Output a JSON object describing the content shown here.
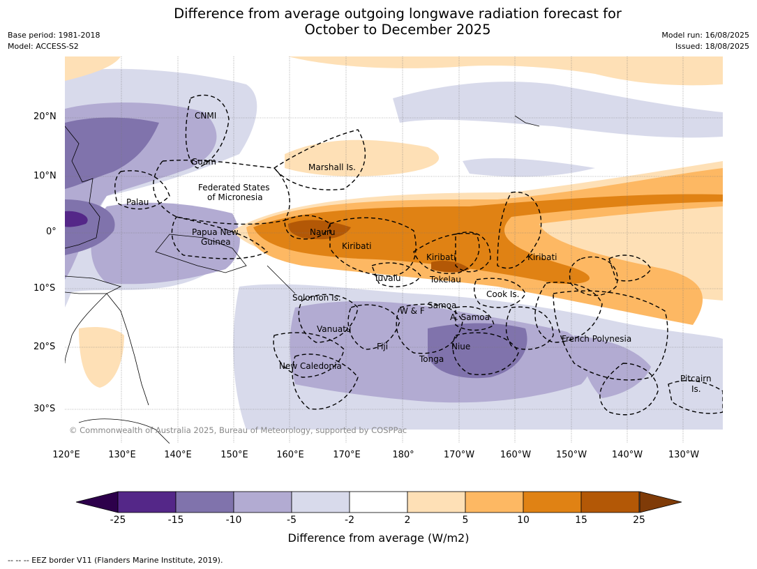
{
  "title_line1": "Difference from average outgoing longwave radiation forecast for",
  "title_line2": "October to December 2025",
  "base_period": "Base period: 1981-2018",
  "model": "Model: ACCESS-S2",
  "model_run": "Model run: 16/08/2025",
  "issued": "Issued: 18/08/2025",
  "copyright": "© Commonwealth of Australia 2025, Bureau of Meteorology, supported by COSPPac",
  "lat_labels": [
    "20°N",
    "10°N",
    "0°",
    "10°S",
    "20°S",
    "30°S"
  ],
  "lon_labels": [
    "120°E",
    "130°E",
    "140°E",
    "150°E",
    "160°E",
    "170°E",
    "180°",
    "170°W",
    "160°W",
    "150°W",
    "140°W",
    "130°W"
  ],
  "places": {
    "cnmi": "CNMI",
    "guam": "Guam",
    "marshall": "Marshall Is.",
    "fsm1": "Federated States",
    "fsm2": "of Micronesia",
    "palau": "Palau",
    "png1": "Papua New",
    "png2": "Guinea",
    "nauru": "Nauru",
    "kiribati_w": "Kiribati",
    "kiribati_c": "Kiribati",
    "kiribati_e": "Kiribati",
    "tuvalu": "Tuvalu",
    "tokelau": "Tokelau",
    "cook": "Cook Is.",
    "solomon": "Solomon Is.",
    "wf": "W & F",
    "samoa": "Samoa",
    "asamoa": "A. Samoa",
    "vanuatu": "Vanuatu",
    "fiji": "Fiji",
    "niue": "Niue",
    "tonga": "Tonga",
    "fp": "French Polynesia",
    "newcal": "New Caledonia",
    "pitcairn1": "Pitcairn",
    "pitcairn2": "Is."
  },
  "colorbar": {
    "title": "Difference from average (W/m2)",
    "ticks": [
      "-25",
      "-15",
      "-10",
      "-5",
      "-2",
      "2",
      "5",
      "10",
      "15",
      "25"
    ],
    "colors": [
      "#2d004b",
      "#542788",
      "#8073ac",
      "#b2abd2",
      "#d8daeb",
      "#ffffff",
      "#fee0b6",
      "#fdb863",
      "#e08214",
      "#b35806",
      "#7f3b08"
    ]
  },
  "footer": "--  --  -- EEZ border V11 (Flanders Marine Institute, 2019)."
}
